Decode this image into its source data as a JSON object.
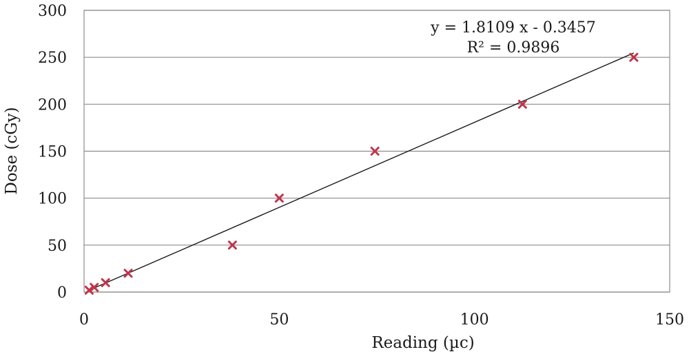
{
  "chart_data": {
    "type": "scatter",
    "xlabel": "Reading (µc)",
    "ylabel": "Dose (cGy)",
    "xlim": [
      0,
      150
    ],
    "ylim": [
      0,
      300
    ],
    "xticks": [
      "0",
      "50",
      "100",
      "150"
    ],
    "yticks": [
      "0",
      "50",
      "100",
      "150",
      "200",
      "250",
      "300"
    ],
    "grid": "horizontal",
    "marker_color": "#c0354b",
    "series": [
      {
        "x": [
          1.3,
          2.6,
          5.5,
          11.3,
          38,
          50,
          74.5,
          112.3,
          140.8
        ],
        "y": [
          2,
          5,
          10,
          20,
          50,
          100,
          150,
          200,
          250
        ]
      }
    ],
    "trendline": {
      "slope": 1.8109,
      "intercept": -0.3457,
      "equation": "y = 1.8109 x - 0.3457",
      "r2_label": "R² = 0.9896"
    }
  }
}
